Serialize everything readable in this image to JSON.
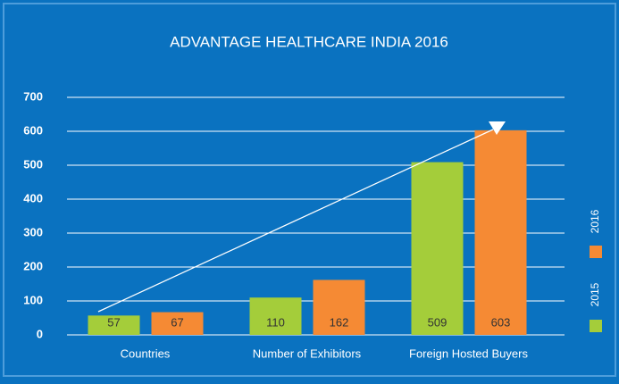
{
  "chart_data": {
    "type": "bar",
    "title": "ADVANTAGE HEALTHCARE INDIA 2016",
    "categories": [
      "Countries",
      "Number of Exhibitors",
      "Foreign Hosted Buyers"
    ],
    "series": [
      {
        "name": "2015",
        "color": "#a4cd3a",
        "values": [
          57,
          110,
          509
        ]
      },
      {
        "name": "2016",
        "color": "#f58a34",
        "values": [
          67,
          162,
          603
        ]
      }
    ],
    "ylim": [
      0,
      700
    ],
    "yticks": [
      0,
      100,
      200,
      300,
      400,
      500,
      600,
      700
    ],
    "grid": true,
    "legend": "right"
  }
}
